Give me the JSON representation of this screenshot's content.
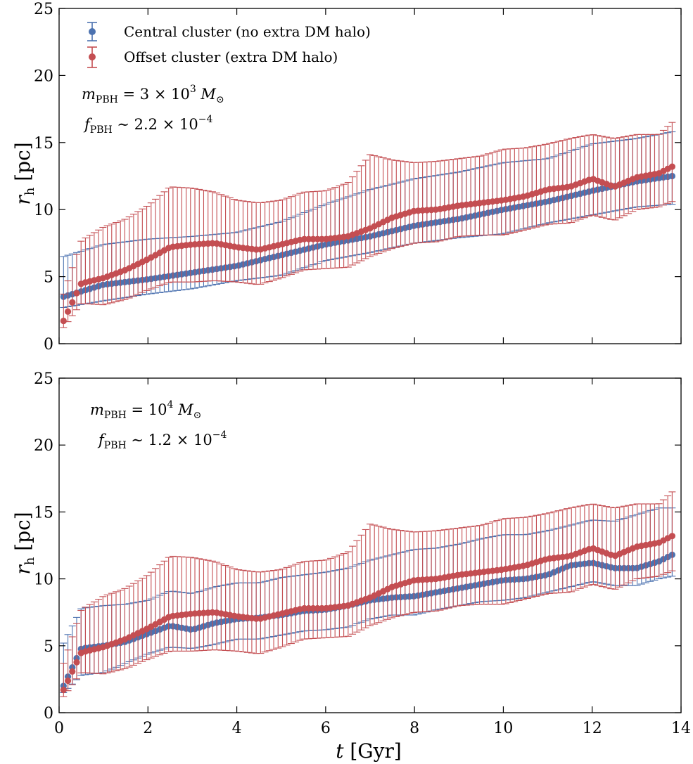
{
  "chart_data": [
    {
      "type": "scatter",
      "panel": "top",
      "title": "",
      "xlabel": "",
      "ylabel": "r_h [pc]",
      "ylabel_main": "r",
      "ylabel_sub": "h",
      "ylabel_unit": "[pc]",
      "xlim": [
        0,
        14
      ],
      "ylim": [
        0,
        25
      ],
      "xticks": [
        0,
        2,
        4,
        6,
        8,
        10,
        12,
        14
      ],
      "yticks": [
        0,
        5,
        10,
        15,
        20,
        25
      ],
      "ytick_labels": [
        "0",
        "5",
        "10",
        "15",
        "20",
        "25"
      ],
      "grid": false,
      "legend_placement": "top-left",
      "annotation": {
        "line1_sym": "m",
        "line1_sub": "PBH",
        "line1_rest": " = 3 × 10",
        "line1_exp": "3",
        "line1_unit": " M",
        "line1_unit_sub": "⊙",
        "line2_sym": "f",
        "line2_sub": "PBH",
        "line2_rest": " ∼ 2.2 × 10",
        "line2_exp": "−4"
      },
      "series": [
        {
          "name": "Central cluster (no extra DM halo)",
          "color": "#4c72b0",
          "errorbar": true,
          "x": [
            0.1,
            1.0,
            2.0,
            3.0,
            4.0,
            5.0,
            6.0,
            7.0,
            8.0,
            9.0,
            10.0,
            11.0,
            12.0,
            13.0,
            13.8
          ],
          "y": [
            3.5,
            4.4,
            4.8,
            5.3,
            5.8,
            6.6,
            7.4,
            8.0,
            8.8,
            9.3,
            10.0,
            10.6,
            11.4,
            12.1,
            12.5
          ],
          "yerr_low": [
            0.8,
            1.2,
            1.1,
            1.2,
            1.1,
            1.5,
            1.2,
            1.2,
            1.3,
            1.4,
            1.8,
            1.6,
            1.8,
            1.9,
            2.1
          ],
          "yerr_high": [
            3.0,
            3.0,
            3.0,
            2.7,
            2.5,
            2.5,
            3.0,
            3.5,
            3.5,
            3.5,
            3.5,
            3.2,
            3.5,
            3.2,
            3.3
          ]
        },
        {
          "name": "Offset cluster (extra DM halo)",
          "color": "#c44e52",
          "errorbar": true,
          "x": [
            0.1,
            0.5,
            1.0,
            1.5,
            2.0,
            2.5,
            3.0,
            3.5,
            4.0,
            4.5,
            5.0,
            5.5,
            6.0,
            6.5,
            7.0,
            7.5,
            8.0,
            8.5,
            9.0,
            9.5,
            10.0,
            10.5,
            11.0,
            11.5,
            12.0,
            12.5,
            13.0,
            13.5,
            13.8
          ],
          "y": [
            1.7,
            4.5,
            4.9,
            5.5,
            6.3,
            7.2,
            7.4,
            7.5,
            7.2,
            7.0,
            7.4,
            7.8,
            7.8,
            8.0,
            8.6,
            9.4,
            9.9,
            10.0,
            10.3,
            10.5,
            10.7,
            11.0,
            11.5,
            11.7,
            12.3,
            11.7,
            12.4,
            12.7,
            13.2
          ],
          "yerr_low": [
            0.5,
            1.5,
            2.0,
            2.2,
            2.3,
            2.6,
            2.8,
            2.8,
            2.6,
            2.6,
            2.5,
            2.3,
            2.2,
            2.3,
            2.1,
            2.3,
            2.4,
            2.4,
            2.3,
            2.4,
            2.6,
            2.5,
            2.6,
            2.7,
            2.7,
            2.5,
            2.4,
            2.5,
            2.6
          ],
          "yerr_high": [
            2.0,
            3.2,
            3.8,
            3.8,
            4.0,
            4.5,
            4.2,
            3.8,
            3.5,
            3.5,
            3.3,
            3.5,
            3.6,
            4.0,
            5.5,
            4.3,
            3.6,
            3.6,
            3.5,
            3.5,
            3.8,
            3.6,
            3.4,
            3.6,
            3.3,
            3.6,
            3.2,
            2.9,
            3.3
          ]
        }
      ]
    },
    {
      "type": "scatter",
      "panel": "bottom",
      "title": "",
      "xlabel": "t [Gyr]",
      "xlabel_main": "t",
      "xlabel_unit": "[Gyr]",
      "ylabel": "r_h [pc]",
      "ylabel_main": "r",
      "ylabel_sub": "h",
      "ylabel_unit": "[pc]",
      "xlim": [
        0,
        14
      ],
      "ylim": [
        0,
        25
      ],
      "xticks": [
        0,
        2,
        4,
        6,
        8,
        10,
        12,
        14
      ],
      "xtick_labels": [
        "0",
        "2",
        "4",
        "6",
        "8",
        "10",
        "12",
        "14"
      ],
      "yticks": [
        0,
        5,
        10,
        15,
        20,
        25
      ],
      "ytick_labels": [
        "0",
        "5",
        "10",
        "15",
        "20",
        "25"
      ],
      "grid": false,
      "annotation": {
        "line1_sym": "m",
        "line1_sub": "PBH",
        "line1_rest": " = 10",
        "line1_exp": "4",
        "line1_unit": " M",
        "line1_unit_sub": "⊙",
        "line2_sym": "f",
        "line2_sub": "PBH",
        "line2_rest": " ∼ 1.2 × 10",
        "line2_exp": "−4"
      },
      "series": [
        {
          "name": "Central cluster (no extra DM halo)",
          "color": "#4c72b0",
          "errorbar": true,
          "x": [
            0.1,
            0.5,
            1.0,
            1.5,
            2.0,
            2.5,
            3.0,
            3.5,
            4.0,
            4.5,
            5.0,
            5.5,
            6.0,
            6.5,
            7.0,
            7.5,
            8.0,
            8.5,
            9.0,
            9.5,
            10.0,
            10.5,
            11.0,
            11.5,
            12.0,
            12.5,
            13.0,
            13.5,
            13.8
          ],
          "y": [
            2.0,
            4.8,
            5.0,
            5.3,
            5.9,
            6.5,
            6.2,
            6.7,
            7.0,
            7.1,
            7.3,
            7.6,
            7.7,
            8.0,
            8.4,
            8.6,
            8.7,
            9.0,
            9.3,
            9.6,
            9.9,
            10.0,
            10.3,
            11.0,
            11.2,
            10.8,
            10.8,
            11.3,
            11.8
          ],
          "yerr_low": [
            0.5,
            2.0,
            2.0,
            1.6,
            1.5,
            1.6,
            1.4,
            1.6,
            1.5,
            1.6,
            1.5,
            1.5,
            1.5,
            1.6,
            1.4,
            1.3,
            1.4,
            1.3,
            1.3,
            1.3,
            1.5,
            1.4,
            1.3,
            1.6,
            1.4,
            1.3,
            1.3,
            1.3,
            1.6
          ],
          "yerr_high": [
            3.2,
            3.0,
            3.0,
            2.8,
            2.5,
            2.6,
            2.7,
            2.7,
            2.7,
            2.6,
            2.8,
            2.7,
            2.8,
            2.8,
            3.0,
            3.2,
            3.5,
            3.3,
            3.3,
            3.4,
            3.4,
            3.3,
            3.3,
            3.0,
            3.2,
            3.5,
            4.0,
            4.0,
            3.5
          ]
        },
        {
          "name": "Offset cluster (extra DM halo)",
          "color": "#c44e52",
          "errorbar": true,
          "x": [
            0.1,
            0.5,
            1.0,
            1.5,
            2.0,
            2.5,
            3.0,
            3.5,
            4.0,
            4.5,
            5.0,
            5.5,
            6.0,
            6.5,
            7.0,
            7.5,
            8.0,
            8.5,
            9.0,
            9.5,
            10.0,
            10.5,
            11.0,
            11.5,
            12.0,
            12.5,
            13.0,
            13.5,
            13.8
          ],
          "y": [
            1.7,
            4.5,
            4.9,
            5.5,
            6.3,
            7.2,
            7.4,
            7.5,
            7.2,
            7.0,
            7.4,
            7.8,
            7.8,
            8.0,
            8.6,
            9.4,
            9.9,
            10.0,
            10.3,
            10.5,
            10.7,
            11.0,
            11.5,
            11.7,
            12.3,
            11.7,
            12.4,
            12.7,
            13.2
          ],
          "yerr_low": [
            0.5,
            1.5,
            2.0,
            2.2,
            2.3,
            2.6,
            2.8,
            2.8,
            2.6,
            2.6,
            2.5,
            2.3,
            2.2,
            2.3,
            2.1,
            2.3,
            2.4,
            2.4,
            2.3,
            2.4,
            2.6,
            2.5,
            2.6,
            2.7,
            2.7,
            2.5,
            2.4,
            2.5,
            2.6
          ],
          "yerr_high": [
            2.0,
            3.2,
            3.8,
            3.8,
            4.0,
            4.5,
            4.2,
            3.8,
            3.5,
            3.5,
            3.3,
            3.5,
            3.6,
            4.0,
            5.5,
            4.3,
            3.6,
            3.6,
            3.5,
            3.5,
            3.8,
            3.6,
            3.4,
            3.6,
            3.3,
            3.6,
            3.2,
            2.9,
            3.3
          ]
        }
      ]
    }
  ]
}
